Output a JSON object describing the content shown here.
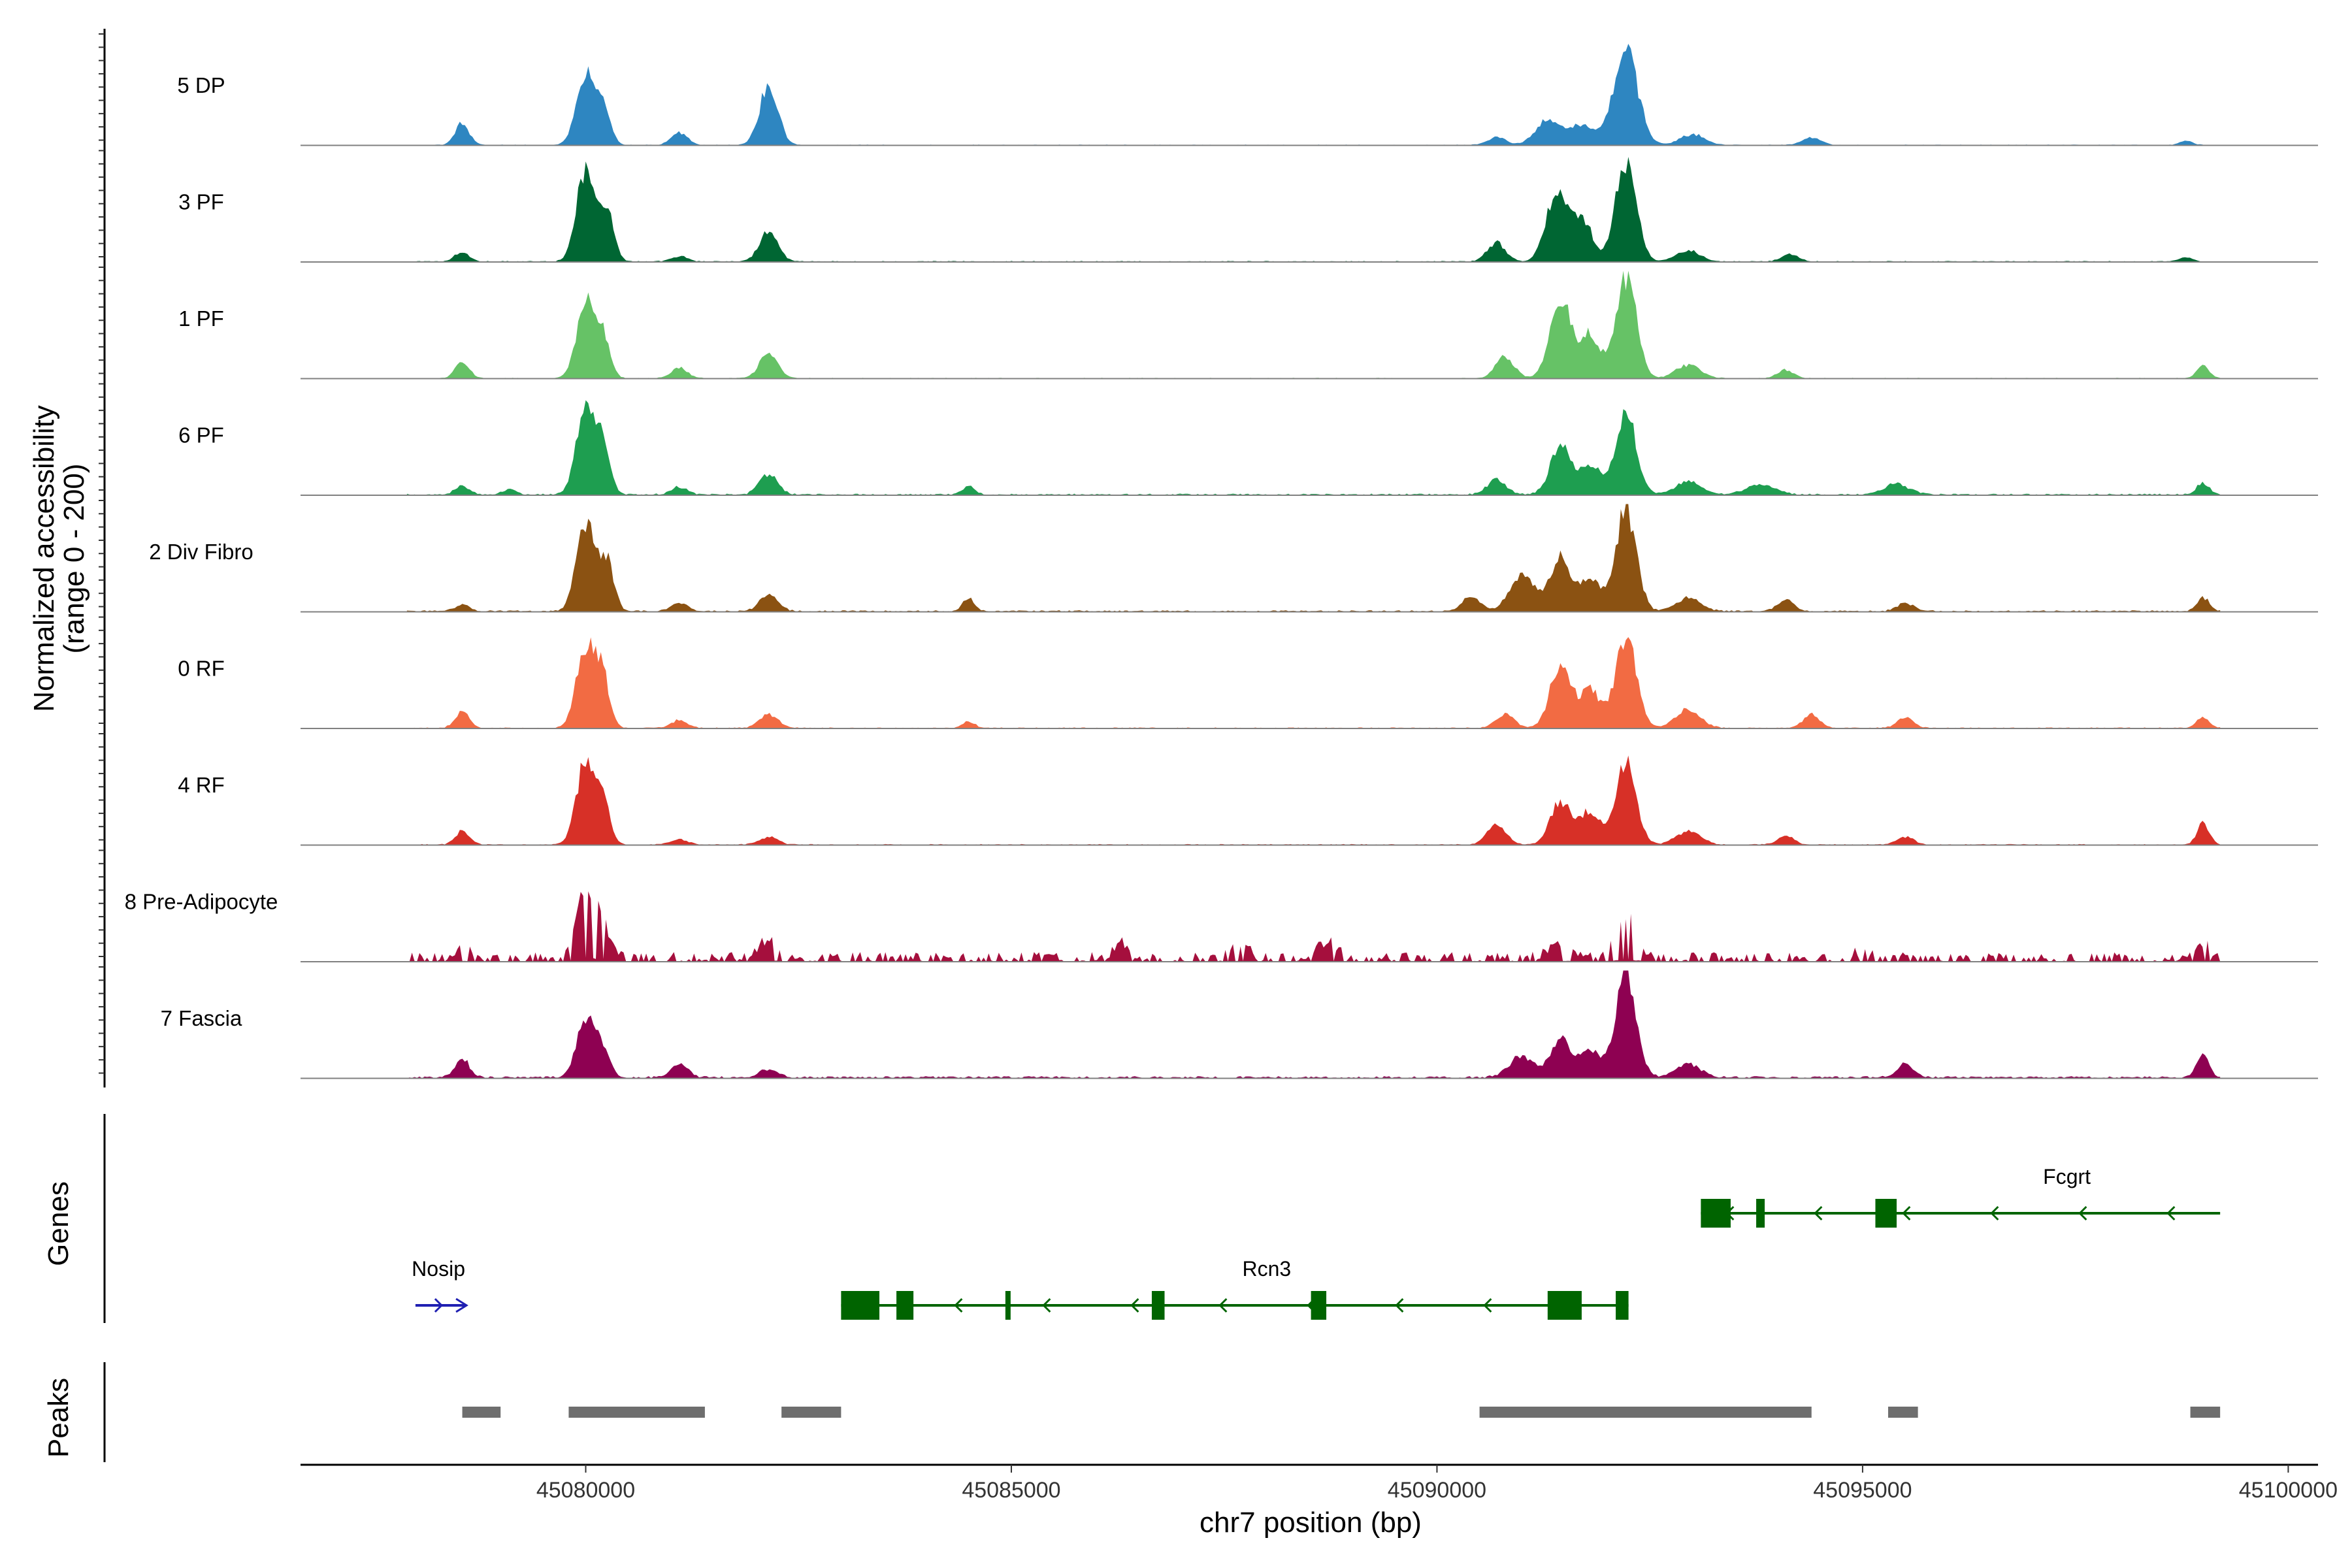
{
  "chart_data": {
    "type": "area",
    "title": "",
    "region": {
      "chrom": "chr7",
      "start": 45077900,
      "end": 45099200
    },
    "xlabel": "chr7 position (bp)",
    "xlim": [
      45076650,
      45100350
    ],
    "xticks": [
      {
        "value": 45080000,
        "label": "45080000"
      },
      {
        "value": 45085000,
        "label": "45085000"
      },
      {
        "value": 45090000,
        "label": "45090000"
      },
      {
        "value": 45095000,
        "label": "45095000"
      },
      {
        "value": 45100000,
        "label": "45100000"
      }
    ],
    "ylabel_line1": "Normalized accessibility",
    "ylabel_line2": "(range 0 - 200)",
    "ylim": [
      0,
      200
    ],
    "genes_label": "Genes",
    "peaks_label": "Peaks",
    "series": [
      {
        "name": "5 DP",
        "color": "#2E86C1",
        "noise": 1.5,
        "peaks": [
          [
            45078550,
            40,
            7
          ],
          [
            45080000,
            130,
            9
          ],
          [
            45080200,
            70,
            7
          ],
          [
            45081100,
            22,
            8
          ],
          [
            45082150,
            110,
            9
          ],
          [
            45090700,
            14,
            9
          ],
          [
            45091300,
            45,
            12
          ],
          [
            45091700,
            38,
            12
          ],
          [
            45092220,
            170,
            12
          ],
          [
            45093000,
            20,
            12
          ],
          [
            45094400,
            14,
            9
          ],
          [
            45098800,
            8,
            6
          ]
        ]
      },
      {
        "name": "3 PF",
        "color": "#006633",
        "noise": 2.0,
        "peaks": [
          [
            45078550,
            18,
            7
          ],
          [
            45080000,
            170,
            9
          ],
          [
            45080250,
            90,
            7
          ],
          [
            45081100,
            10,
            8
          ],
          [
            45082150,
            55,
            9
          ],
          [
            45090700,
            35,
            9
          ],
          [
            45091400,
            130,
            10
          ],
          [
            45091700,
            80,
            10
          ],
          [
            45092220,
            190,
            10
          ],
          [
            45092950,
            20,
            12
          ],
          [
            45094150,
            15,
            8
          ],
          [
            45098800,
            8,
            6
          ]
        ]
      },
      {
        "name": "1 PF",
        "color": "#66C266",
        "noise": 1.5,
        "peaks": [
          [
            45078550,
            30,
            7
          ],
          [
            45080000,
            135,
            9
          ],
          [
            45080200,
            75,
            7
          ],
          [
            45081100,
            20,
            8
          ],
          [
            45082150,
            45,
            9
          ],
          [
            45090800,
            40,
            9
          ],
          [
            45091450,
            150,
            10
          ],
          [
            45091800,
            80,
            10
          ],
          [
            45092220,
            190,
            10
          ],
          [
            45092950,
            25,
            12
          ],
          [
            45094100,
            15,
            8
          ],
          [
            45099000,
            25,
            6
          ]
        ]
      },
      {
        "name": "6 PF",
        "color": "#1E9E50",
        "noise": 3.0,
        "peaks": [
          [
            45078550,
            15,
            7
          ],
          [
            45079100,
            10,
            6
          ],
          [
            45080000,
            155,
            9
          ],
          [
            45080200,
            90,
            7
          ],
          [
            45081100,
            15,
            8
          ],
          [
            45082150,
            38,
            9
          ],
          [
            45084500,
            15,
            6
          ],
          [
            45090700,
            28,
            9
          ],
          [
            45091450,
            90,
            10
          ],
          [
            45091800,
            55,
            10
          ],
          [
            45092220,
            150,
            10
          ],
          [
            45092950,
            25,
            12
          ],
          [
            45093800,
            20,
            14
          ],
          [
            45095400,
            20,
            12
          ],
          [
            45099000,
            22,
            6
          ]
        ]
      },
      {
        "name": "2 Div Fibro",
        "color": "#8B5212",
        "noise": 3.0,
        "peaks": [
          [
            45078550,
            12,
            7
          ],
          [
            45080000,
            160,
            9
          ],
          [
            45080250,
            90,
            7
          ],
          [
            45081100,
            15,
            8
          ],
          [
            45082150,
            30,
            9
          ],
          [
            45084500,
            25,
            6
          ],
          [
            45090400,
            25,
            9
          ],
          [
            45091000,
            70,
            12
          ],
          [
            45091450,
            100,
            10
          ],
          [
            45091800,
            60,
            10
          ],
          [
            45092220,
            190,
            10
          ],
          [
            45092950,
            25,
            12
          ],
          [
            45094100,
            20,
            8
          ],
          [
            45095500,
            15,
            8
          ],
          [
            45099000,
            25,
            6
          ]
        ]
      },
      {
        "name": "0 RF",
        "color": "#F26B43",
        "noise": 2.0,
        "peaks": [
          [
            45078550,
            30,
            7
          ],
          [
            45080000,
            150,
            9
          ],
          [
            45080200,
            90,
            7
          ],
          [
            45081100,
            15,
            8
          ],
          [
            45082150,
            25,
            9
          ],
          [
            45084500,
            12,
            6
          ],
          [
            45090800,
            25,
            9
          ],
          [
            45091450,
            120,
            10
          ],
          [
            45091800,
            70,
            10
          ],
          [
            45092220,
            170,
            10
          ],
          [
            45092950,
            35,
            12
          ],
          [
            45094400,
            25,
            8
          ],
          [
            45095500,
            20,
            8
          ],
          [
            45099000,
            20,
            6
          ]
        ]
      },
      {
        "name": "4 RF",
        "color": "#D73027",
        "noise": 2.0,
        "peaks": [
          [
            45078550,
            25,
            7
          ],
          [
            45080000,
            155,
            9
          ],
          [
            45080200,
            80,
            7
          ],
          [
            45081100,
            10,
            8
          ],
          [
            45082150,
            15,
            9
          ],
          [
            45090700,
            40,
            9
          ],
          [
            45091450,
            80,
            10
          ],
          [
            45091800,
            60,
            10
          ],
          [
            45092220,
            150,
            10
          ],
          [
            45092950,
            25,
            12
          ],
          [
            45094100,
            15,
            8
          ],
          [
            45095500,
            15,
            8
          ],
          [
            45099000,
            40,
            6
          ]
        ]
      },
      {
        "name": "8 Pre-Adipocyte",
        "color": "#A50F3D",
        "noise": 18.0,
        "peaks": [
          [
            45078550,
            20,
            7
          ],
          [
            45080000,
            120,
            9
          ],
          [
            45080200,
            60,
            7
          ],
          [
            45082150,
            35,
            9
          ],
          [
            45086300,
            25,
            8
          ],
          [
            45087700,
            25,
            8
          ],
          [
            45088700,
            30,
            10
          ],
          [
            45091450,
            25,
            12
          ],
          [
            45092220,
            70,
            10
          ],
          [
            45095000,
            15,
            8
          ],
          [
            45099000,
            25,
            6
          ]
        ]
      },
      {
        "name": "7 Fascia",
        "color": "#8E0152",
        "noise": 4.0,
        "peaks": [
          [
            45078550,
            35,
            7
          ],
          [
            45080000,
            105,
            9
          ],
          [
            45080200,
            50,
            7
          ],
          [
            45081100,
            25,
            8
          ],
          [
            45082150,
            15,
            9
          ],
          [
            45091000,
            40,
            12
          ],
          [
            45091450,
            70,
            10
          ],
          [
            45091800,
            50,
            10
          ],
          [
            45092220,
            200,
            10
          ],
          [
            45092950,
            25,
            12
          ],
          [
            45095500,
            25,
            8
          ],
          [
            45099000,
            45,
            6
          ]
        ]
      }
    ],
    "genes": [
      {
        "name": "Nosip",
        "strand": "+",
        "color": "#1F1FB2",
        "start": 45078000,
        "end": 45078600,
        "exons": []
      },
      {
        "name": "Rcn3",
        "strand": "-",
        "color": "#006400",
        "start": 45083000,
        "end": 45092250,
        "exons": [
          [
            45083000,
            45083450
          ],
          [
            45083650,
            45083850
          ],
          [
            45084930,
            45084980
          ],
          [
            45086650,
            45086800
          ],
          [
            45088520,
            45088700
          ],
          [
            45091300,
            45091700
          ],
          [
            45092100,
            45092250
          ]
        ]
      },
      {
        "name": "Fcgrt",
        "strand": "-",
        "color": "#006400",
        "start": 45093100,
        "end": 45099200,
        "exons": [
          [
            45093100,
            45093450
          ],
          [
            45093750,
            45093850
          ],
          [
            45095150,
            45095400
          ]
        ]
      }
    ],
    "peaks": [
      [
        45078550,
        45079000
      ],
      [
        45079800,
        45081400
      ],
      [
        45082300,
        45083000
      ],
      [
        45090500,
        45094400
      ],
      [
        45095300,
        45095650
      ],
      [
        45098850,
        45099200
      ]
    ]
  }
}
